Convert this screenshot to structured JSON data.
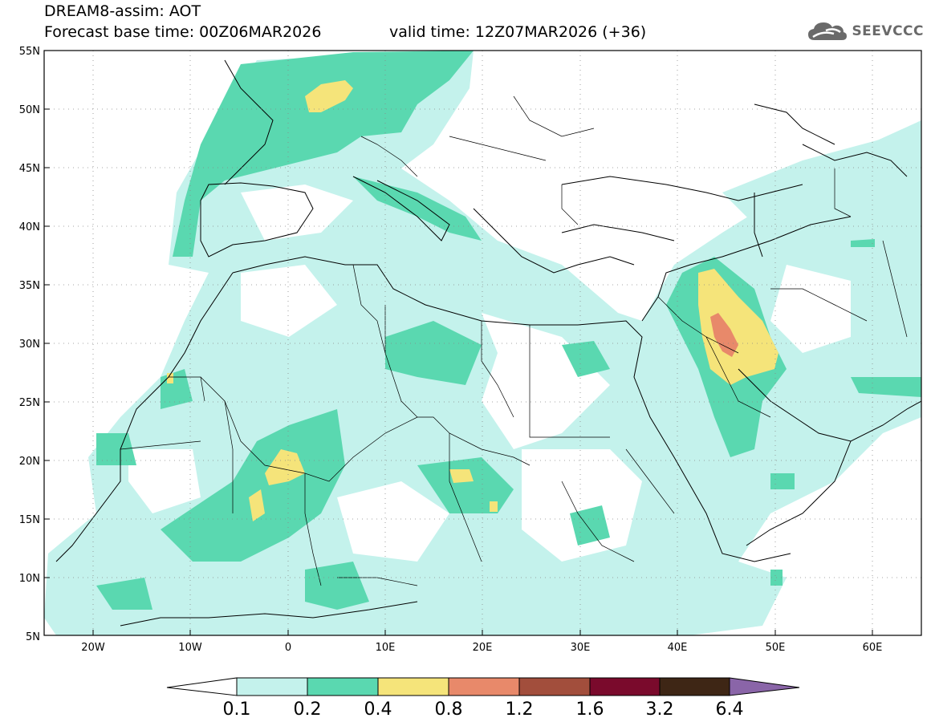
{
  "header": {
    "title": "DREAM8-assim: AOT",
    "forecast": "Forecast base time: 00Z06MAR2026",
    "valid": "valid time: 12Z07MAR2026 (+36)"
  },
  "logo": {
    "text": "SEEVCCC",
    "icon": "cloud-icon"
  },
  "map": {
    "extent": {
      "lon": [
        -25,
        65
      ],
      "lat": [
        5,
        55
      ]
    },
    "lat_labels": [
      "55N",
      "50N",
      "45N",
      "40N",
      "35N",
      "30N",
      "25N",
      "20N",
      "15N",
      "10N",
      "5N"
    ],
    "lon_labels": [
      "20W",
      "10W",
      "0",
      "10E",
      "20E",
      "30E",
      "40E",
      "50E",
      "60E"
    ],
    "gridlines": "dotted"
  },
  "colorbar": {
    "labels": [
      "0.1",
      "0.2",
      "0.4",
      "0.8",
      "1.2",
      "1.6",
      "3.2",
      "6.4"
    ],
    "colors": [
      "#ffffff",
      "#c4f2ec",
      "#5ad8b0",
      "#f5e47a",
      "#e8896a",
      "#a24e3c",
      "#7a0a2c",
      "#3e2615",
      "#8a65a8"
    ]
  },
  "field_colors": {
    "c1": "#c4f2ec",
    "c2": "#5ad8b0",
    "c3": "#f5e47a",
    "c4": "#e8896a"
  }
}
